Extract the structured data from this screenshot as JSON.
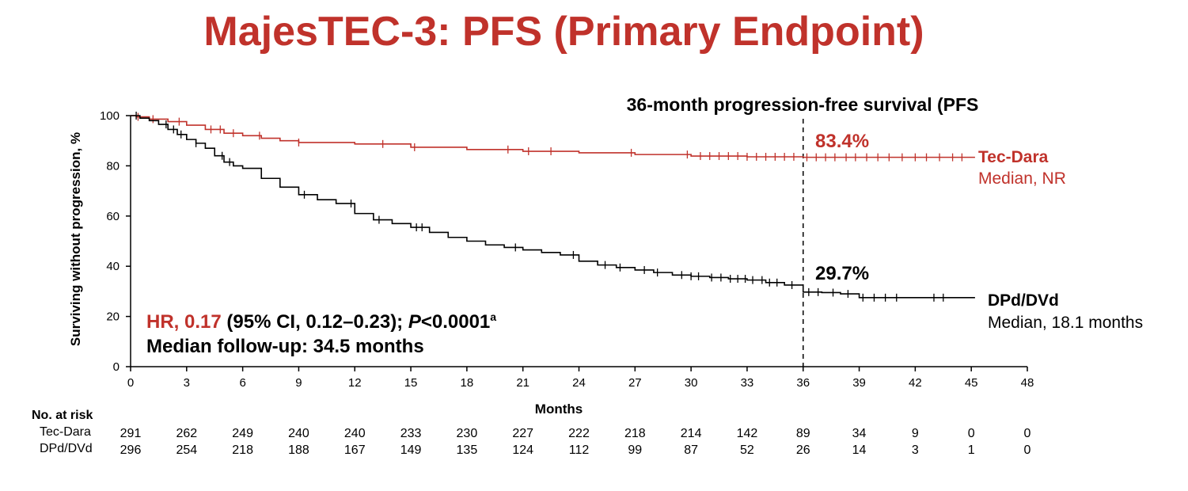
{
  "title": "MajesTEC-3: PFS (Primary Endpoint)",
  "colors": {
    "tec": "#c0322b",
    "dpd": "#000000"
  },
  "chart_data": {
    "type": "line",
    "title": "MajesTEC-3: PFS (Primary Endpoint)",
    "xlabel": "Months",
    "ylabel": "Surviving without progression, %",
    "xlim": [
      0,
      48
    ],
    "ylim": [
      0,
      100
    ],
    "xticks": [
      0,
      3,
      6,
      9,
      12,
      15,
      18,
      21,
      24,
      27,
      30,
      33,
      36,
      39,
      42,
      45,
      48
    ],
    "yticks": [
      0,
      20,
      40,
      60,
      80,
      100
    ],
    "grid": false,
    "annotation_line_x": 36,
    "annotation_title": "36-month progression-free survival (PFS",
    "series": [
      {
        "name": "Tec-Dara",
        "median_label": "Median, NR",
        "value_at_36": "83.4%",
        "x": [
          0,
          0.3,
          1.0,
          2.0,
          3.0,
          4.0,
          5.0,
          6.0,
          7.0,
          8.0,
          9.0,
          12.0,
          15.0,
          18.0,
          21.0,
          24.0,
          27.0,
          30.0,
          33.0,
          36.0,
          39.0,
          42.0,
          45.2
        ],
        "y": [
          100,
          99.5,
          98.6,
          97.6,
          96.2,
          94.5,
          93.0,
          92.0,
          91.0,
          90.0,
          89.3,
          88.7,
          87.4,
          86.5,
          85.8,
          85.2,
          84.5,
          83.9,
          83.6,
          83.4,
          83.4,
          83.4,
          83.4
        ],
        "censor_x": [
          0.4,
          1.2,
          2.6,
          4.3,
          4.8,
          5.5,
          6.9,
          9.0,
          13.5,
          15.2,
          20.2,
          21.3,
          22.5,
          26.8,
          29.8,
          30.5,
          31.0,
          31.5,
          32.0,
          32.5,
          33.0,
          33.5,
          34.0,
          34.5,
          35.0,
          35.5,
          36.2,
          36.7,
          37.2,
          37.7,
          38.3,
          38.8,
          39.4,
          40.0,
          40.6,
          41.3,
          42.0,
          42.6,
          43.3,
          44.0,
          44.5
        ]
      },
      {
        "name": "DPd/DVd",
        "median_label": "Median, 18.1 months",
        "value_at_36": "29.7%",
        "x": [
          0,
          0.5,
          1.0,
          1.5,
          2.0,
          2.5,
          3.0,
          3.5,
          4.0,
          4.5,
          5.0,
          5.5,
          6.0,
          7.0,
          8.0,
          9.0,
          10.0,
          11.0,
          12.0,
          13.0,
          14.0,
          15.0,
          16.0,
          17.0,
          18.0,
          19.0,
          20.0,
          21.0,
          22.0,
          23.0,
          24.0,
          25.0,
          26.0,
          27.0,
          28.0,
          29.0,
          30.0,
          31.0,
          32.0,
          33.0,
          34.0,
          35.0,
          36.0,
          37.0,
          38.0,
          39.0,
          42.0,
          45.2
        ],
        "y": [
          100,
          99.0,
          98.0,
          96.5,
          94.5,
          92.5,
          90.5,
          89.0,
          87.0,
          84.0,
          81.5,
          80.0,
          79.0,
          75.0,
          71.5,
          68.5,
          66.5,
          65.0,
          61.0,
          58.5,
          57.0,
          55.5,
          53.5,
          51.5,
          50.0,
          48.5,
          47.5,
          46.5,
          45.5,
          44.5,
          42.0,
          40.5,
          39.5,
          38.5,
          37.5,
          36.5,
          36.0,
          35.5,
          35.0,
          34.5,
          33.5,
          32.5,
          29.7,
          29.5,
          29.0,
          27.5,
          27.5,
          27.5
        ],
        "censor_x": [
          0.3,
          1.9,
          2.3,
          2.7,
          3.5,
          4.9,
          5.3,
          9.3,
          11.8,
          13.3,
          15.3,
          15.6,
          20.6,
          23.7,
          25.4,
          26.2,
          27.5,
          28.2,
          29.5,
          30.0,
          30.4,
          31.1,
          31.6,
          32.1,
          32.5,
          32.9,
          33.3,
          33.8,
          34.2,
          34.6,
          35.4,
          36.3,
          36.8,
          37.6,
          38.4,
          39.2,
          39.8,
          40.4,
          41.0,
          43.0,
          43.5
        ]
      }
    ]
  },
  "stats": {
    "hr_label": "HR, 0.17",
    "ci_text": " (95% CI, 0.12–0.23); ",
    "p_italic": "P",
    "p_value": "<0.0001",
    "p_sup": "a",
    "followup": "Median follow-up: 34.5 months"
  },
  "risk_table": {
    "header": "No. at risk",
    "rows": [
      {
        "label": "Tec-Dara",
        "values": [
          "291",
          "262",
          "249",
          "240",
          "240",
          "233",
          "230",
          "227",
          "222",
          "218",
          "214",
          "142",
          "89",
          "34",
          "9",
          "0",
          "0"
        ]
      },
      {
        "label": "DPd/DVd",
        "values": [
          "296",
          "254",
          "218",
          "188",
          "167",
          "149",
          "135",
          "124",
          "112",
          "99",
          "87",
          "52",
          "26",
          "14",
          "3",
          "1",
          "0"
        ]
      }
    ]
  }
}
